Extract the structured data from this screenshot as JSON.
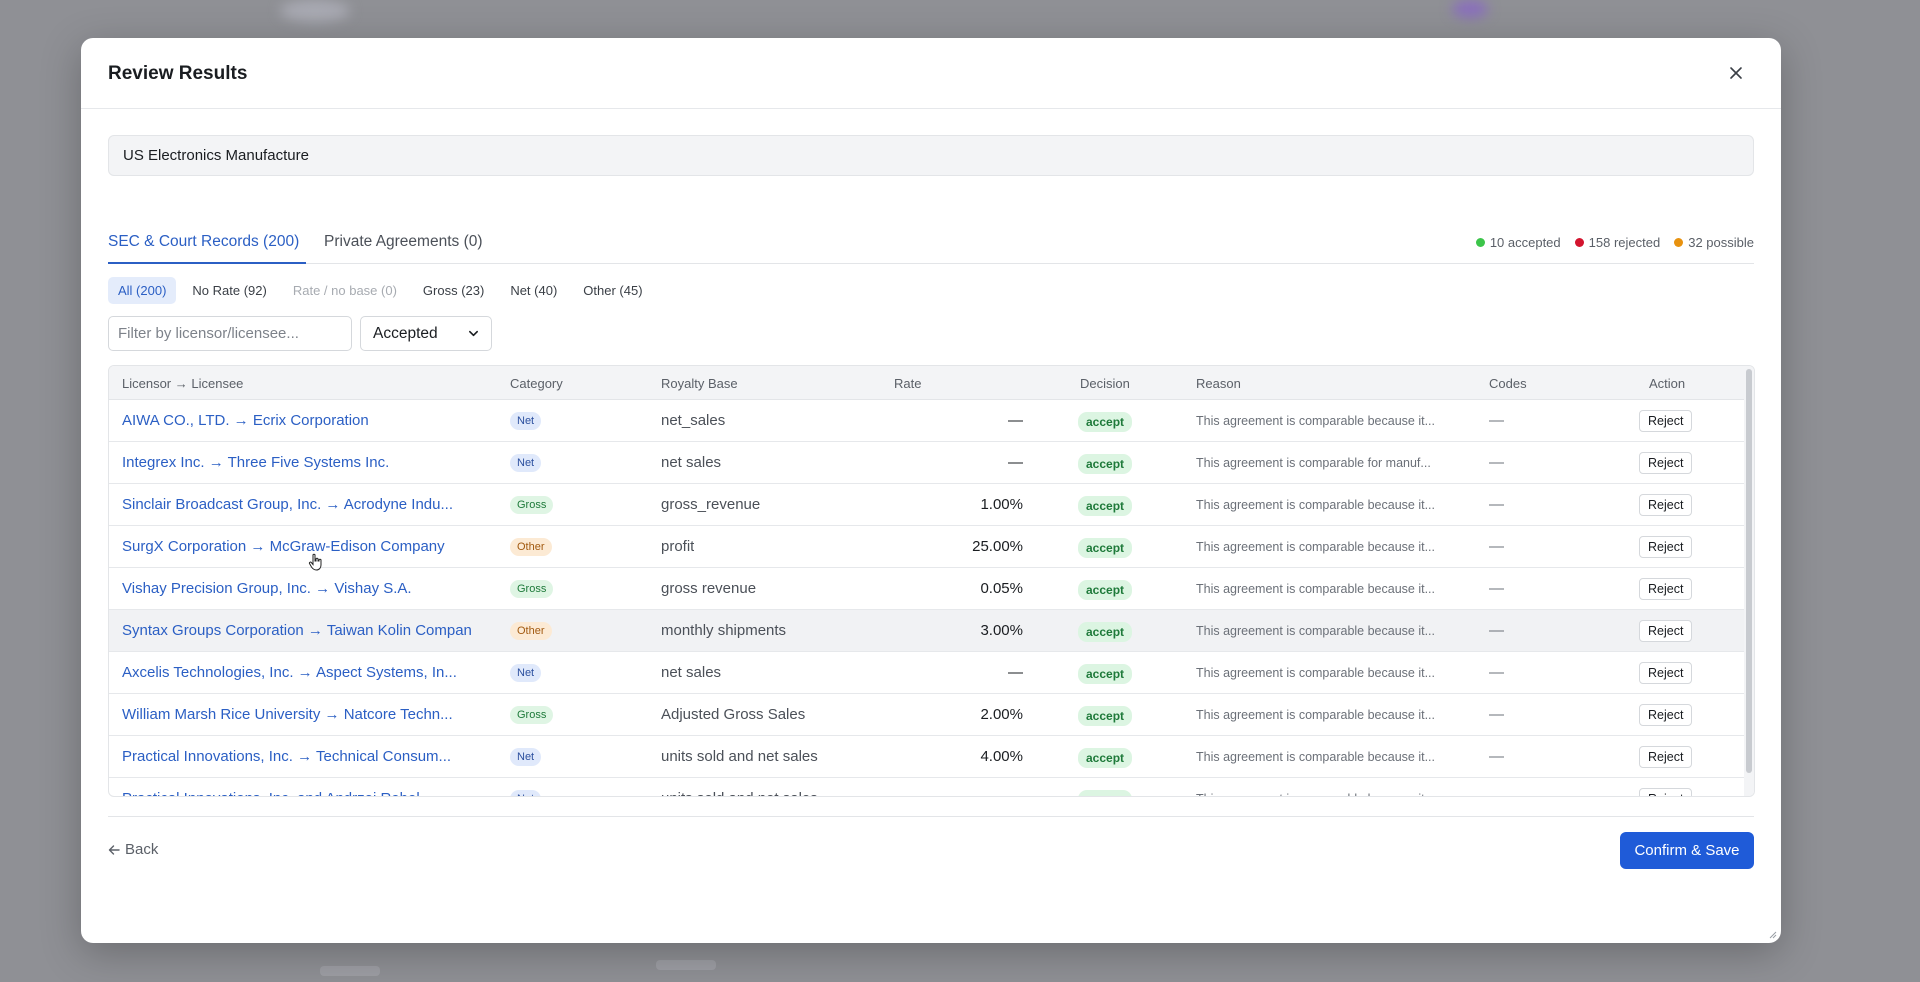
{
  "modal": {
    "title": "Review Results",
    "close_icon": "close-icon",
    "dataset_name": "US Electronics Manufacture"
  },
  "tabs": {
    "sec": "SEC & Court Records (200)",
    "private": "Private Agreements (0)"
  },
  "stats": {
    "accepted": "10 accepted",
    "rejected": "158 rejected",
    "possible": "32 possible",
    "colors": {
      "accepted": "#3cc54a",
      "rejected": "#d3142e",
      "possible": "#e8920f"
    }
  },
  "subtabs": [
    "All (200)",
    "No Rate (92)",
    "Rate / no base (0)",
    "Gross (23)",
    "Net (40)",
    "Other (45)"
  ],
  "filter": {
    "placeholder": "Filter by licensor/licensee...",
    "status_value": "Accepted"
  },
  "table": {
    "headers": {
      "pair": "Licensor → Licensee",
      "category": "Category",
      "base": "Royalty Base",
      "rate": "Rate",
      "decision": "Decision",
      "reason": "Reason",
      "codes": "Codes",
      "action": "Action"
    },
    "rows": [
      {
        "pair": "AIWA CO., LTD. → Ecrix Corporation",
        "category": "Net",
        "base": "net_sales",
        "rate": "—",
        "decision": "accept",
        "reason": "This agreement is comparable because it...",
        "codes": "—",
        "action": "Reject"
      },
      {
        "pair": "Integrex Inc. → Three Five Systems Inc.",
        "category": "Net",
        "base": "net sales",
        "rate": "—",
        "decision": "accept",
        "reason": "This agreement is comparable for manuf...",
        "codes": "—",
        "action": "Reject"
      },
      {
        "pair": "Sinclair Broadcast Group, Inc. → Acrodyne Indu...",
        "category": "Gross",
        "base": "gross_revenue",
        "rate": "1.00%",
        "decision": "accept",
        "reason": "This agreement is comparable because it...",
        "codes": "—",
        "action": "Reject"
      },
      {
        "pair": "SurgX Corporation → McGraw-Edison Company",
        "category": "Other",
        "base": "profit",
        "rate": "25.00%",
        "decision": "accept",
        "reason": "This agreement is comparable because it...",
        "codes": "—",
        "action": "Reject"
      },
      {
        "pair": "Vishay Precision Group, Inc. → Vishay S.A.",
        "category": "Gross",
        "base": "gross revenue",
        "rate": "0.05%",
        "decision": "accept",
        "reason": "This agreement is comparable because it...",
        "codes": "—",
        "action": "Reject"
      },
      {
        "pair": "Syntax Groups Corporation → Taiwan Kolin Compan",
        "category": "Other",
        "base": "monthly shipments",
        "rate": "3.00%",
        "decision": "accept",
        "reason": "This agreement is comparable because it...",
        "codes": "—",
        "action": "Reject"
      },
      {
        "pair": "Axcelis Technologies, Inc. → Aspect Systems, In...",
        "category": "Net",
        "base": "net sales",
        "rate": "—",
        "decision": "accept",
        "reason": "This agreement is comparable because it...",
        "codes": "—",
        "action": "Reject"
      },
      {
        "pair": "William Marsh Rice University → Natcore Techn...",
        "category": "Gross",
        "base": "Adjusted Gross Sales",
        "rate": "2.00%",
        "decision": "accept",
        "reason": "This agreement is comparable because it...",
        "codes": "—",
        "action": "Reject"
      },
      {
        "pair": "Practical Innovations, Inc. → Technical Consum...",
        "category": "Net",
        "base": "units sold and net sales",
        "rate": "4.00%",
        "decision": "accept",
        "reason": "This agreement is comparable because it...",
        "codes": "—",
        "action": "Reject"
      },
      {
        "pair": "Practical Innovations, Inc. and Andrzej Rebel →...",
        "category": "Net",
        "base": "units sold and net sales",
        "rate": "",
        "decision": "accept",
        "reason": "This agreement is comparable because it...",
        "codes": "—",
        "action": "Reject"
      }
    ]
  },
  "footer": {
    "back": "Back",
    "confirm": "Confirm & Save"
  }
}
